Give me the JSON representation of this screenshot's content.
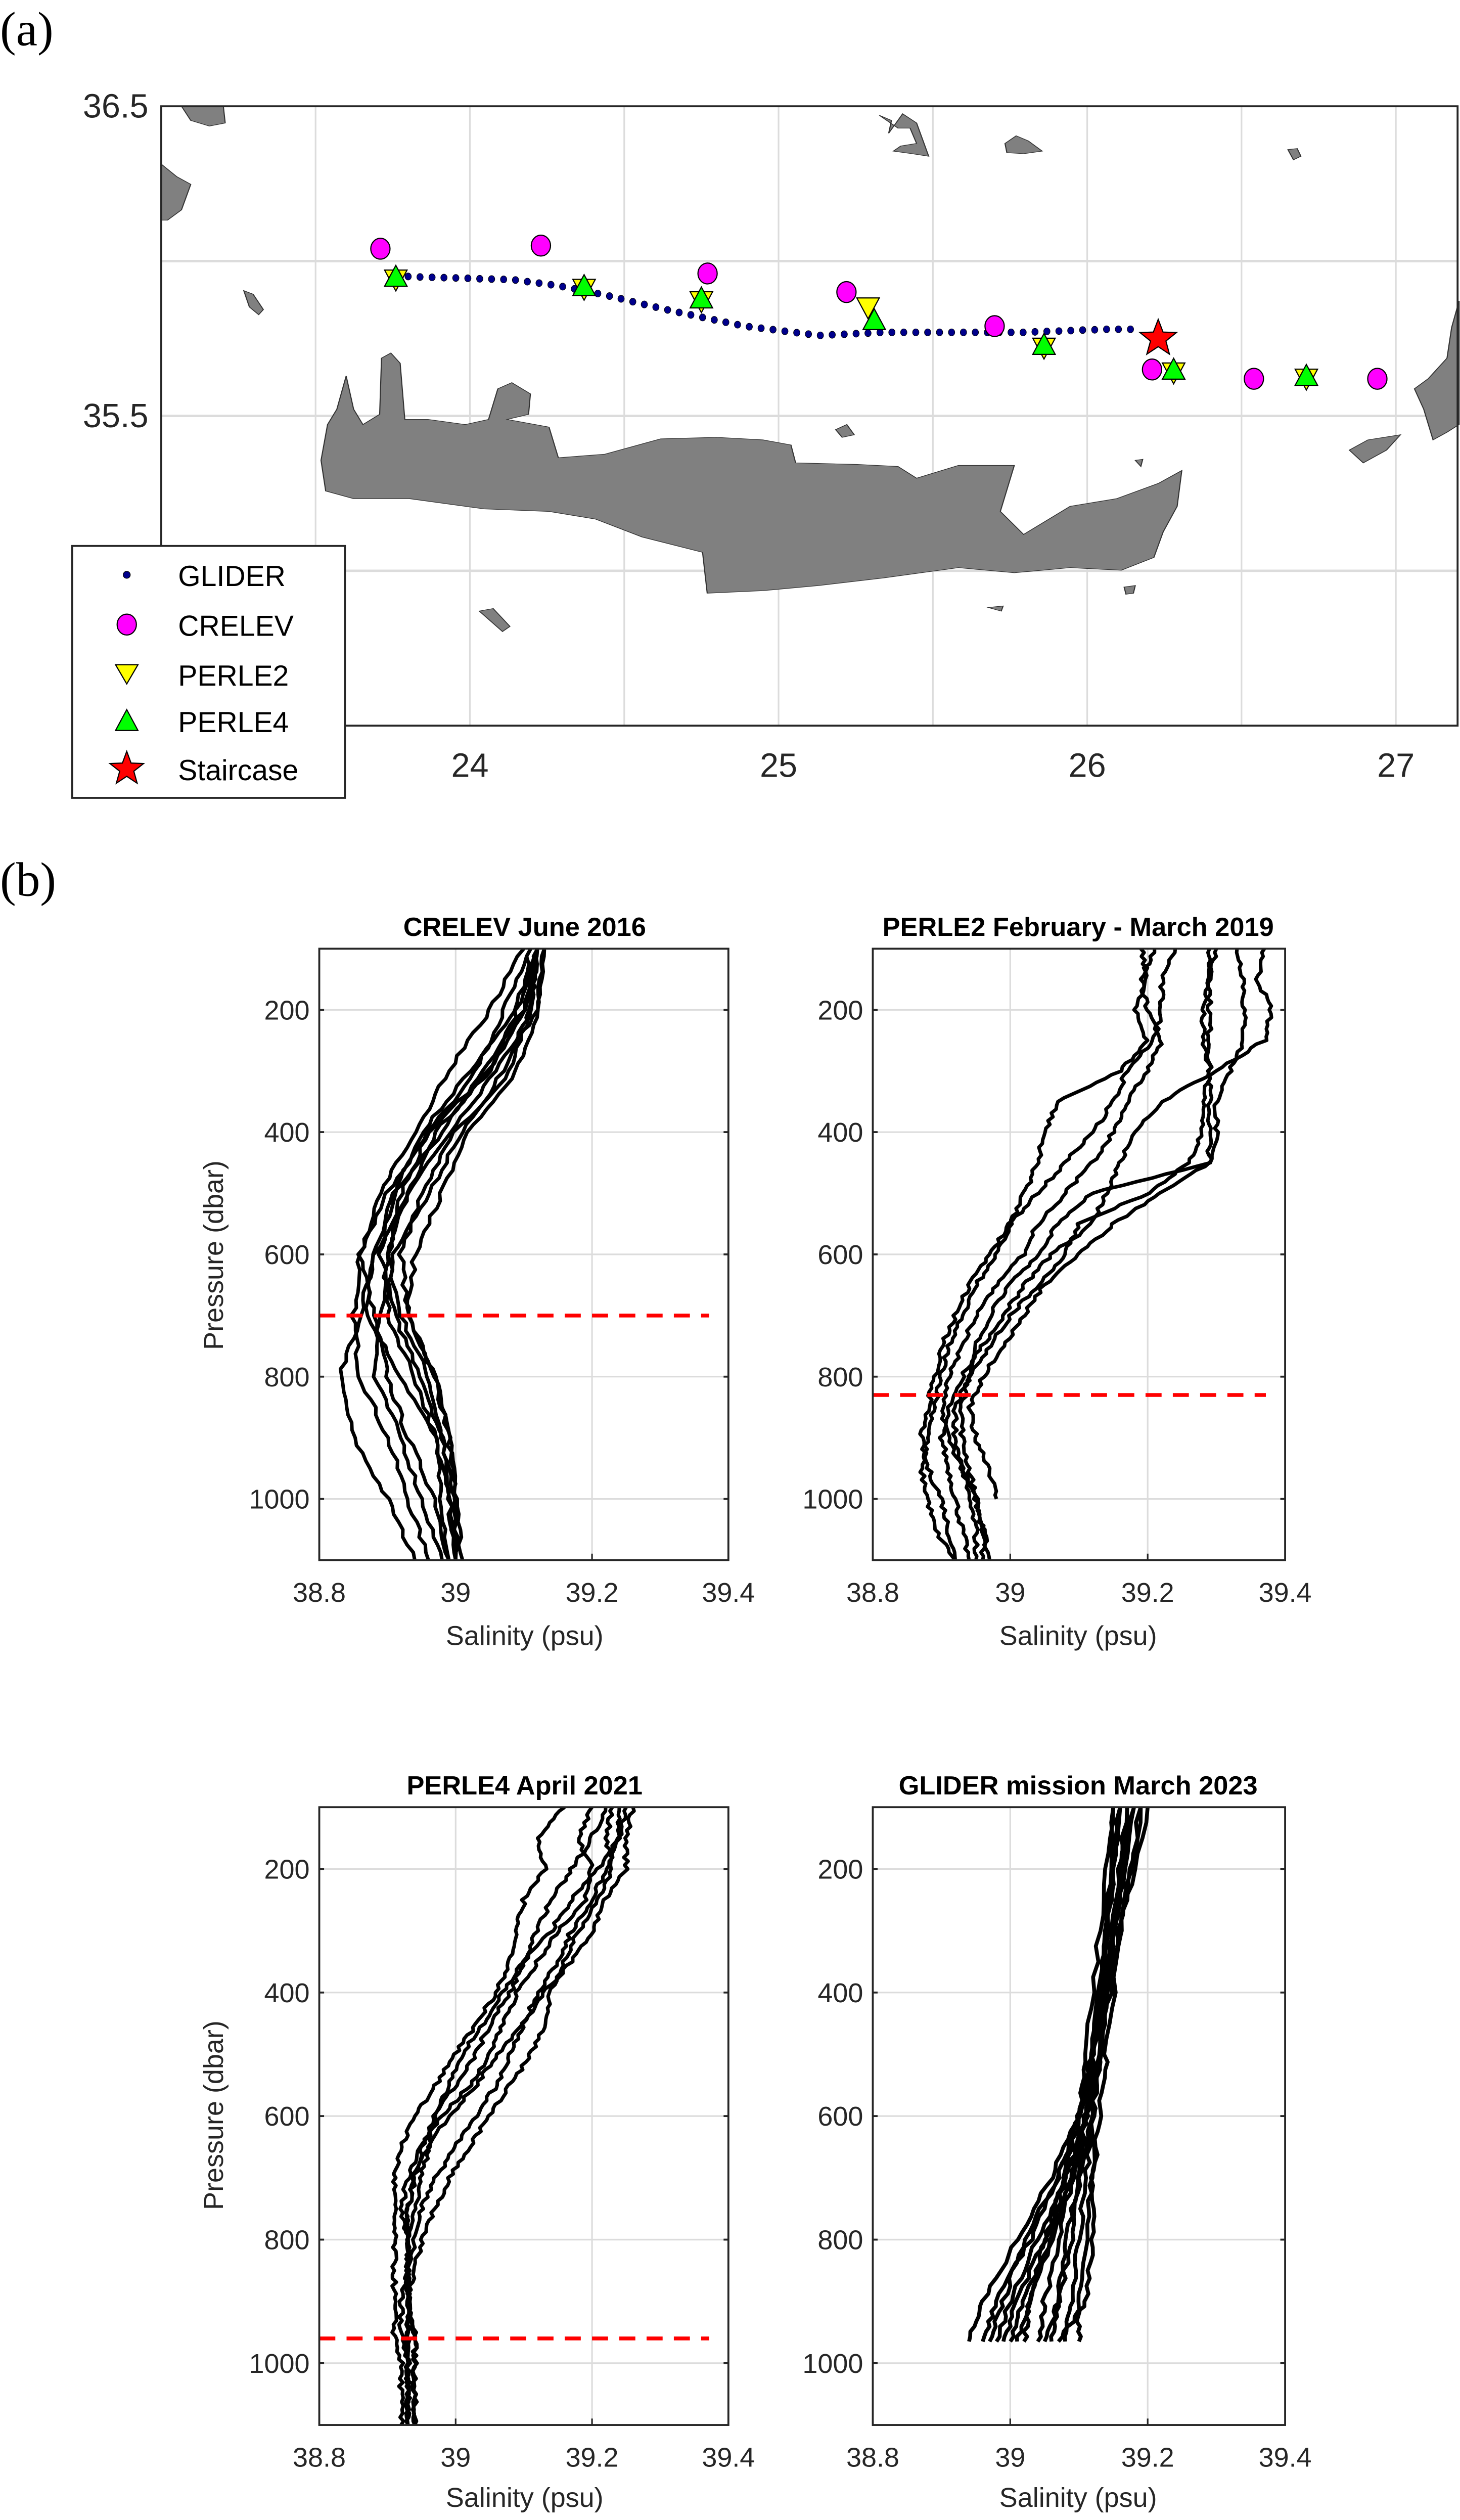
{
  "labels": {
    "a": "(a)",
    "b": "(b)"
  },
  "chart_data": [
    {
      "type": "scatter",
      "panel": "a",
      "xlim": [
        23.0,
        27.2
      ],
      "ylim": [
        34.5,
        36.5
      ],
      "xticks": [
        24,
        25,
        26,
        27
      ],
      "yticks": [
        36.5,
        35.5
      ],
      "grid_step": 0.5,
      "grid": true,
      "legend_position": "bottom-left",
      "series": [
        {
          "name": "GLIDER",
          "marker": "dot",
          "color": "#00008B",
          "track": [
            [
              23.8,
              35.95
            ],
            [
              24.14,
              35.94
            ],
            [
              24.29,
              35.92
            ],
            [
              24.44,
              35.89
            ],
            [
              24.65,
              35.84
            ],
            [
              24.89,
              35.79
            ],
            [
              25.13,
              35.76
            ],
            [
              25.34,
              35.77
            ],
            [
              25.55,
              35.77
            ],
            [
              25.79,
              35.77
            ],
            [
              26.07,
              35.78
            ],
            [
              26.14,
              35.78
            ]
          ],
          "count": 62
        },
        {
          "name": "CRELEV",
          "marker": "circle",
          "color": "#FF00FF",
          "points": [
            [
              23.71,
              36.04
            ],
            [
              24.23,
              36.05
            ],
            [
              24.77,
              35.96
            ],
            [
              25.22,
              35.9
            ],
            [
              25.7,
              35.79
            ],
            [
              26.21,
              35.65
            ],
            [
              26.54,
              35.62
            ],
            [
              26.94,
              35.62
            ]
          ]
        },
        {
          "name": "PERLE2",
          "marker": "triangle-down",
          "color": "#FFFF00",
          "points": [
            [
              23.76,
              35.94
            ],
            [
              24.37,
              35.91
            ],
            [
              24.75,
              35.87
            ],
            [
              25.29,
              35.85
            ],
            [
              25.86,
              35.72
            ],
            [
              26.28,
              35.64
            ],
            [
              26.71,
              35.62
            ]
          ]
        },
        {
          "name": "PERLE4",
          "marker": "triangle-up",
          "color": "#00FF00",
          "points": [
            [
              23.76,
              35.95
            ],
            [
              24.37,
              35.92
            ],
            [
              24.75,
              35.88
            ],
            [
              25.31,
              35.81
            ],
            [
              25.86,
              35.73
            ],
            [
              26.28,
              35.65
            ],
            [
              26.71,
              35.63
            ]
          ]
        },
        {
          "name": "Staircase",
          "marker": "star",
          "color": "#FF0000",
          "points": [
            [
              26.23,
              35.75
            ]
          ]
        }
      ]
    },
    {
      "type": "line",
      "title": "CRELEV June 2016",
      "xlabel": "Salinity (psu)",
      "ylabel": "Pressure (dbar)",
      "xlim": [
        38.8,
        39.4
      ],
      "ylim": [
        100,
        1100
      ],
      "y_reversed": true,
      "xticks": [
        38.8,
        39,
        39.2,
        39.4
      ],
      "yticks": [
        200,
        400,
        600,
        800,
        1000
      ],
      "reference_line": {
        "pressure": 700,
        "color": "#FF0000",
        "style": "dashed"
      },
      "pressure": [
        100,
        200,
        300,
        400,
        500,
        600,
        700,
        800,
        900,
        1000,
        1100
      ],
      "profiles": [
        [
          39.12,
          39.1,
          39.05,
          38.97,
          38.93,
          38.9,
          38.92,
          38.96,
          38.98,
          38.99,
          39.0
        ],
        [
          39.12,
          39.11,
          39.08,
          39.0,
          38.95,
          38.92,
          38.93,
          38.97,
          38.99,
          39.0,
          39.0
        ],
        [
          39.11,
          39.07,
          39.03,
          38.96,
          38.9,
          38.86,
          38.85,
          38.86,
          38.9,
          38.93,
          38.96
        ],
        [
          39.13,
          39.12,
          39.06,
          38.99,
          38.93,
          38.88,
          38.86,
          38.83,
          38.85,
          38.9,
          38.94
        ],
        [
          39.1,
          39.05,
          38.99,
          38.94,
          38.89,
          38.86,
          38.88,
          38.9,
          38.93,
          38.97,
          38.99
        ],
        [
          39.13,
          39.12,
          39.09,
          39.02,
          38.98,
          38.94,
          38.93,
          38.97,
          38.99,
          39.0,
          39.01
        ],
        [
          39.12,
          39.1,
          39.04,
          38.98,
          38.91,
          38.88,
          38.87,
          38.92,
          38.97,
          38.99,
          39.0
        ],
        [
          39.12,
          39.11,
          39.07,
          39.01,
          38.96,
          38.91,
          38.89,
          38.88,
          38.92,
          38.95,
          38.98
        ],
        [
          39.11,
          39.09,
          39.05,
          38.96,
          38.92,
          38.9,
          38.9,
          38.94,
          38.97,
          38.98,
          38.99
        ],
        [
          39.12,
          39.09,
          39.02,
          38.95,
          38.91,
          38.89,
          38.91,
          38.95,
          38.98,
          39.0,
          39.0
        ]
      ]
    },
    {
      "type": "line",
      "title": "PERLE2 February - March 2019",
      "xlabel": "Salinity (psu)",
      "ylabel": "",
      "xlim": [
        38.8,
        39.4
      ],
      "ylim": [
        100,
        1100
      ],
      "y_reversed": true,
      "xticks": [
        38.8,
        39,
        39.2,
        39.4
      ],
      "yticks": [
        200,
        400,
        600,
        800,
        1000
      ],
      "reference_line": {
        "pressure": 830,
        "color": "#FF0000",
        "style": "dashed"
      },
      "pressure": [
        100,
        150,
        200,
        250,
        300,
        350,
        400,
        450,
        500,
        550,
        600,
        650,
        700,
        750,
        800,
        850,
        900,
        950,
        1000,
        1050,
        1100
      ],
      "profiles": [
        [
          39.29,
          39.29,
          39.29,
          39.29,
          39.29,
          39.29,
          39.29,
          39.29,
          39.12,
          39.07,
          39.04,
          39.0,
          38.97,
          38.95,
          38.94,
          38.93,
          38.93,
          38.94,
          38.95,
          38.96,
          38.97
        ],
        [
          39.37,
          39.36,
          39.38,
          39.37,
          39.3,
          39.22,
          39.18,
          39.16,
          39.14,
          39.12,
          39.06,
          39.02,
          38.99,
          38.96,
          38.93,
          38.91,
          38.9,
          38.91,
          38.92,
          38.93,
          38.94
        ],
        [
          39.19,
          39.2,
          39.18,
          39.2,
          39.16,
          39.07,
          39.05,
          39.04,
          39.02,
          39.0,
          38.98,
          38.95,
          38.93,
          38.91,
          38.9,
          38.89,
          38.88,
          38.87,
          38.88,
          38.89,
          38.92
        ],
        [
          39.24,
          39.22,
          39.22,
          39.21,
          39.17,
          39.15,
          39.12,
          39.08,
          39.04,
          39.0,
          38.97,
          38.94,
          38.92,
          38.9,
          38.89,
          38.88,
          38.87,
          38.88,
          38.9,
          38.91,
          38.92
        ],
        [
          39.33,
          39.34,
          39.34,
          39.34,
          39.32,
          39.3,
          39.3,
          39.29,
          39.22,
          39.15,
          39.1,
          39.05,
          39.02,
          38.99,
          38.96,
          38.94,
          38.95,
          38.97,
          38.98,
          null,
          null
        ],
        [
          39.3,
          39.29,
          39.28,
          39.28,
          39.29,
          39.28,
          39.28,
          39.26,
          39.2,
          39.1,
          39.08,
          39.04,
          39.0,
          38.97,
          38.94,
          38.92,
          38.92,
          38.93,
          38.95,
          38.96,
          38.96
        ],
        [
          39.21,
          39.19,
          39.2,
          39.22,
          39.2,
          39.17,
          39.15,
          39.12,
          39.08,
          39.04,
          39.02,
          38.98,
          38.95,
          38.93,
          38.91,
          38.9,
          38.91,
          38.93,
          38.94,
          38.95,
          38.95
        ]
      ]
    },
    {
      "type": "line",
      "title": "PERLE4 April 2021",
      "xlabel": "Salinity (psu)",
      "ylabel": "Pressure (dbar)",
      "xlim": [
        38.8,
        39.4
      ],
      "ylim": [
        100,
        1100
      ],
      "y_reversed": true,
      "xticks": [
        38.8,
        39,
        39.2,
        39.4
      ],
      "yticks": [
        200,
        400,
        600,
        800,
        1000
      ],
      "reference_line": {
        "pressure": 960,
        "color": "#FF0000",
        "style": "dashed"
      },
      "pressure": [
        100,
        150,
        200,
        250,
        300,
        350,
        400,
        450,
        500,
        550,
        600,
        650,
        700,
        750,
        800,
        850,
        900,
        950,
        1000,
        1050,
        1100
      ],
      "profiles": [
        [
          39.26,
          39.25,
          39.25,
          39.22,
          39.2,
          39.17,
          39.13,
          39.1,
          39.06,
          39.03,
          38.99,
          38.96,
          38.94,
          38.93,
          38.93,
          38.93,
          38.93,
          38.94,
          38.94,
          38.94,
          38.94
        ],
        [
          39.2,
          39.18,
          39.2,
          39.19,
          39.15,
          39.12,
          39.09,
          39.07,
          39.05,
          39.02,
          38.98,
          38.95,
          38.93,
          38.92,
          38.93,
          38.93,
          38.93,
          38.93,
          38.93,
          38.93,
          38.93
        ],
        [
          39.16,
          39.12,
          39.13,
          39.1,
          39.09,
          39.08,
          39.06,
          39.03,
          39.0,
          38.97,
          38.94,
          38.92,
          38.91,
          38.91,
          38.91,
          38.91,
          38.91,
          38.91,
          38.92,
          38.92,
          38.92
        ],
        [
          39.24,
          39.24,
          39.22,
          39.2,
          39.17,
          39.15,
          39.12,
          39.1,
          39.08,
          39.06,
          39.03,
          39.0,
          38.97,
          38.95,
          38.94,
          38.93,
          38.93,
          38.94,
          38.94,
          38.94,
          38.94
        ],
        [
          39.25,
          39.24,
          39.21,
          39.17,
          39.14,
          39.1,
          39.07,
          39.04,
          39.01,
          38.99,
          38.97,
          38.95,
          38.94,
          38.93,
          38.93,
          38.93,
          38.93,
          null,
          null,
          null,
          null
        ],
        [
          39.22,
          39.2,
          39.17,
          39.14,
          39.12,
          39.1,
          39.08,
          39.05,
          39.03,
          39.0,
          38.97,
          38.96,
          38.95,
          38.94,
          38.93,
          38.93,
          38.92,
          38.92,
          38.93,
          38.93,
          38.93
        ],
        [
          39.23,
          39.22,
          39.23,
          39.21,
          39.18,
          39.16,
          39.14,
          39.13,
          39.11,
          39.08,
          39.05,
          39.02,
          38.99,
          38.97,
          38.95,
          38.94,
          38.93,
          38.93,
          38.93,
          38.93,
          38.93
        ]
      ]
    },
    {
      "type": "line",
      "title": "GLIDER mission March 2023",
      "xlabel": "Salinity (psu)",
      "ylabel": "",
      "xlim": [
        38.8,
        39.4
      ],
      "ylim": [
        100,
        1100
      ],
      "y_reversed": true,
      "xticks": [
        38.8,
        39,
        39.2,
        39.4
      ],
      "yticks": [
        200,
        400,
        600,
        800,
        1000
      ],
      "reference_line": null,
      "pressure": [
        100,
        300,
        500,
        600,
        700,
        800,
        900,
        965
      ],
      "profiles": [
        [
          39.16,
          39.14,
          39.12,
          39.1,
          39.06,
          39.01,
          38.96,
          38.94
        ],
        [
          39.18,
          39.15,
          39.12,
          39.1,
          39.07,
          39.03,
          38.98,
          38.96
        ],
        [
          39.17,
          39.15,
          39.13,
          39.11,
          39.08,
          39.04,
          39.0,
          38.98
        ],
        [
          39.19,
          39.16,
          39.13,
          39.11,
          39.09,
          39.06,
          39.02,
          39.0
        ],
        [
          39.15,
          39.13,
          39.11,
          39.1,
          39.08,
          39.06,
          39.03,
          39.02
        ],
        [
          39.18,
          39.15,
          39.12,
          39.11,
          39.09,
          39.07,
          39.05,
          39.04
        ],
        [
          39.16,
          39.14,
          39.12,
          39.11,
          39.1,
          39.08,
          39.07,
          39.06
        ],
        [
          39.2,
          39.16,
          39.13,
          39.12,
          39.11,
          39.1,
          39.09,
          39.08
        ],
        [
          39.17,
          39.15,
          39.13,
          39.12,
          39.12,
          39.11,
          39.1,
          39.1
        ],
        [
          39.19,
          39.16,
          39.14,
          39.13,
          39.12,
          39.12,
          39.11,
          39.07
        ],
        [
          39.15,
          39.14,
          39.12,
          39.1,
          39.07,
          39.02,
          38.99,
          38.97
        ],
        [
          39.18,
          39.15,
          39.13,
          39.11,
          39.09,
          39.05,
          39.01,
          38.99
        ],
        [
          39.16,
          39.14,
          39.12,
          39.11,
          39.08,
          39.05,
          39.03,
          39.01
        ],
        [
          39.17,
          39.15,
          39.13,
          39.12,
          39.1,
          39.09,
          39.07,
          39.05
        ]
      ]
    }
  ]
}
